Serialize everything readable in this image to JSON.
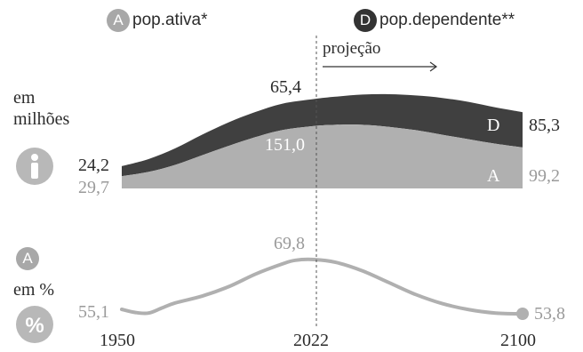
{
  "legend": [
    {
      "badge": "A",
      "label": "pop.ativa*",
      "color": "#b0b0b0"
    },
    {
      "badge": "D",
      "label": "pop.dependente**",
      "color": "#3a3a3a"
    }
  ],
  "projection_label": "projeção",
  "top_panel": {
    "unit_line1": "em",
    "unit_line2": "milhões",
    "icon": "person-icon"
  },
  "bottom_panel": {
    "badge": "A",
    "unit": "em %",
    "icon": "percent-icon"
  },
  "chart_data": [
    {
      "type": "area",
      "stacked": true,
      "x": [
        1950,
        1960,
        1970,
        1980,
        1990,
        2000,
        2010,
        2022,
        2030,
        2040,
        2050,
        2060,
        2070,
        2080,
        2090,
        2100
      ],
      "series": [
        {
          "name": "A",
          "values": [
            29.7,
            40,
            57,
            80,
            103,
            124,
            141,
            151.0,
            154,
            154,
            149,
            141,
            130,
            119,
            108,
            99.2
          ],
          "color": "#b0b0b0"
        },
        {
          "name": "D",
          "values": [
            24.2,
            31,
            40,
            50,
            57,
            61,
            64,
            65.4,
            68,
            73,
            79,
            84,
            89,
            90,
            88,
            85.3
          ],
          "color": "#404040"
        }
      ],
      "data_labels": [
        {
          "series": "D",
          "x": 1950,
          "text": "24,2"
        },
        {
          "series": "A",
          "x": 1950,
          "text": "29,7"
        },
        {
          "series": "D",
          "x": 2022,
          "text": "65,4"
        },
        {
          "series": "A",
          "x": 2022,
          "text": "151,0"
        },
        {
          "series": "D",
          "x": 2100,
          "text": "85,3"
        },
        {
          "series": "A",
          "x": 2100,
          "text": "99,2"
        }
      ],
      "series_tags": [
        "D",
        "A"
      ],
      "grid": false
    },
    {
      "type": "line",
      "x": [
        1950,
        1955,
        1960,
        1965,
        1970,
        1980,
        1990,
        2000,
        2010,
        2015,
        2022,
        2030,
        2040,
        2050,
        2060,
        2070,
        2080,
        2090,
        2100
      ],
      "values": [
        55.1,
        54.2,
        54.0,
        55.5,
        57.0,
        59.0,
        61.8,
        65.5,
        68.5,
        69.6,
        69.8,
        69.0,
        66.5,
        63.0,
        59.5,
        56.8,
        55.0,
        54.0,
        53.8
      ],
      "color": "#b0b0b0",
      "data_labels": [
        {
          "x": 1950,
          "text": "55,1"
        },
        {
          "x": 2022,
          "text": "69,8"
        },
        {
          "x": 2100,
          "text": "53,8"
        }
      ],
      "grid": false
    }
  ],
  "x_axis": {
    "tick_labels": [
      "1950",
      "2022",
      "2100"
    ],
    "ticks": [
      1950,
      2022,
      2100
    ]
  },
  "colors": {
    "dark": "#3a3a3a",
    "light": "#b0b0b0",
    "text": "#2b2b2b",
    "light_text": "#9a9a9a"
  }
}
